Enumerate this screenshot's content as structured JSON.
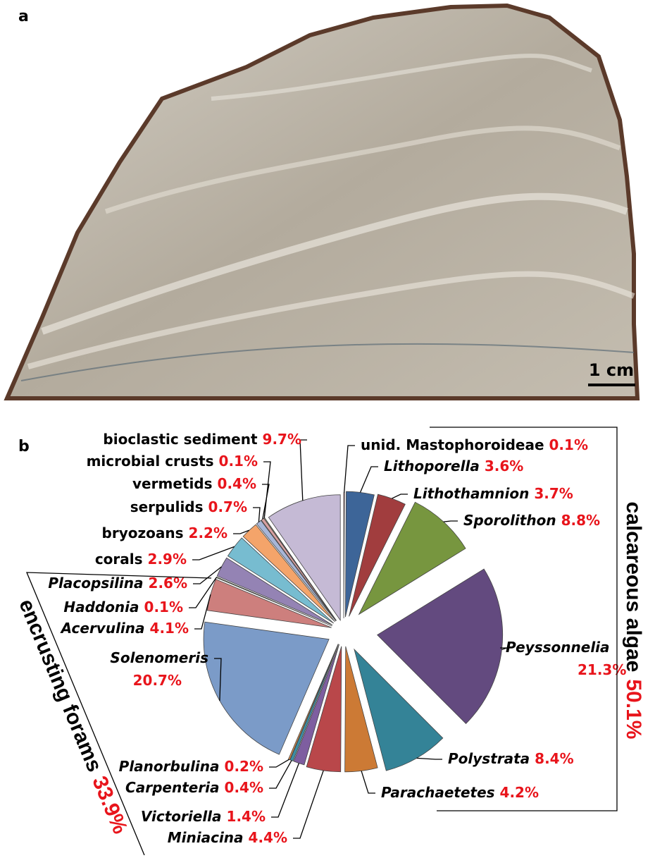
{
  "panels": {
    "a": "a",
    "b": "b"
  },
  "photo": {
    "scale_bar": "1 cm"
  },
  "chart_data": {
    "type": "pie",
    "categories": [
      "unid. Mastophoroideae",
      "Lithoporella",
      "Lithothamnion",
      "Sporolithon",
      "Peyssonnelia",
      "Polystrata",
      "Parachaetetes",
      "Miniacina",
      "Victoriella",
      "Carpenteria",
      "Planorbulina",
      "Solenomeris",
      "Acervulina",
      "Haddonia",
      "Placopsilina",
      "corals",
      "bryozoans",
      "serpulids",
      "vermetids",
      "microbial crusts",
      "bioclastic sediment"
    ],
    "values": [
      0.1,
      3.6,
      3.7,
      8.8,
      21.3,
      8.4,
      4.2,
      4.4,
      1.4,
      0.4,
      0.2,
      20.7,
      4.1,
      0.1,
      2.6,
      2.9,
      2.2,
      0.7,
      0.4,
      0.1,
      9.7
    ],
    "value_labels": [
      "0.1%",
      "3.6%",
      "3.7%",
      "8.8%",
      "21.3%",
      "8.4%",
      "4.2%",
      "4.4%",
      "1.4%",
      "0.4%",
      "0.2%",
      "20.7%",
      "4.1%",
      "0.1%",
      "2.6%",
      "2.9%",
      "2.2%",
      "0.7%",
      "0.4%",
      "0.1%",
      "9.7%"
    ],
    "colors": [
      "#8e2a2c",
      "#3d6598",
      "#a13d3e",
      "#77963f",
      "#634a7f",
      "#348397",
      "#cc7a35",
      "#b9474a",
      "#7e5ea0",
      "#3b8fa5",
      "#d78a47",
      "#7b9bc8",
      "#cd7f7d",
      "#8fa66b",
      "#9483b4",
      "#77bcd0",
      "#f4a46a",
      "#a7b6d8",
      "#d7a0a0",
      "#c7d79b",
      "#c5bad5"
    ],
    "groups": [
      {
        "name": "calcareous algae",
        "value": 50.1,
        "value_label": "50.1%"
      },
      {
        "name": "encrusting forams",
        "value": 33.9,
        "value_label": "33.9%"
      }
    ]
  }
}
